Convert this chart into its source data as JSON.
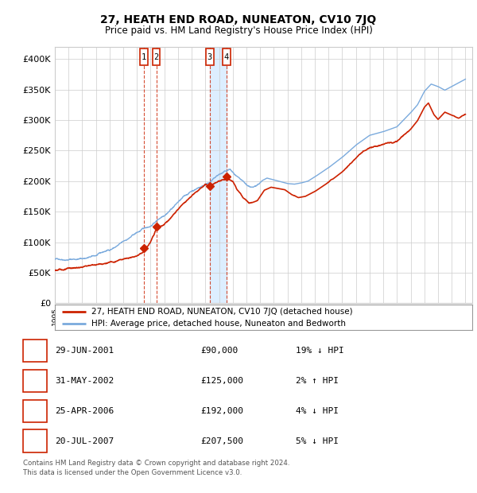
{
  "title": "27, HEATH END ROAD, NUNEATON, CV10 7JQ",
  "subtitle": "Price paid vs. HM Land Registry's House Price Index (HPI)",
  "xlim_start": 1995.0,
  "xlim_end": 2025.5,
  "ylim": [
    0,
    420000
  ],
  "yticks": [
    0,
    50000,
    100000,
    150000,
    200000,
    250000,
    300000,
    350000,
    400000
  ],
  "ytick_labels": [
    "£0",
    "£50K",
    "£100K",
    "£150K",
    "£200K",
    "£250K",
    "£300K",
    "£350K",
    "£400K"
  ],
  "transactions": [
    {
      "date": 2001.49,
      "price": 90000,
      "label": "1"
    },
    {
      "date": 2002.41,
      "price": 125000,
      "label": "2"
    },
    {
      "date": 2006.32,
      "price": 192000,
      "label": "3"
    },
    {
      "date": 2007.55,
      "price": 207500,
      "label": "4"
    }
  ],
  "table_rows": [
    {
      "num": "1",
      "date": "29-JUN-2001",
      "price": "£90,000",
      "rel": "19% ↓ HPI"
    },
    {
      "num": "2",
      "date": "31-MAY-2002",
      "price": "£125,000",
      "rel": "2% ↑ HPI"
    },
    {
      "num": "3",
      "date": "25-APR-2006",
      "price": "£192,000",
      "rel": "4% ↓ HPI"
    },
    {
      "num": "4",
      "date": "20-JUL-2007",
      "price": "£207,500",
      "rel": "5% ↓ HPI"
    }
  ],
  "legend_line1": "27, HEATH END ROAD, NUNEATON, CV10 7JQ (detached house)",
  "legend_line2": "HPI: Average price, detached house, Nuneaton and Bedworth",
  "footer": "Contains HM Land Registry data © Crown copyright and database right 2024.\nThis data is licensed under the Open Government Licence v3.0.",
  "hpi_color": "#7aaadd",
  "price_color": "#cc2200",
  "bg_color": "#ffffff",
  "grid_color": "#cccccc",
  "shaded_color": "#ddeeff",
  "hpi_keypoints": [
    [
      1995.0,
      72000
    ],
    [
      1996.0,
      74000
    ],
    [
      1997.0,
      76000
    ],
    [
      1998.0,
      80000
    ],
    [
      1999.0,
      88000
    ],
    [
      2000.0,
      100000
    ],
    [
      2001.0,
      114000
    ],
    [
      2002.0,
      125000
    ],
    [
      2003.0,
      145000
    ],
    [
      2004.0,
      168000
    ],
    [
      2005.0,
      185000
    ],
    [
      2006.0,
      197000
    ],
    [
      2007.0,
      213000
    ],
    [
      2007.8,
      220000
    ],
    [
      2008.5,
      200000
    ],
    [
      2009.0,
      188000
    ],
    [
      2009.5,
      183000
    ],
    [
      2010.0,
      192000
    ],
    [
      2010.5,
      198000
    ],
    [
      2011.0,
      195000
    ],
    [
      2011.5,
      192000
    ],
    [
      2012.0,
      189000
    ],
    [
      2012.5,
      188000
    ],
    [
      2013.0,
      190000
    ],
    [
      2013.5,
      193000
    ],
    [
      2014.0,
      200000
    ],
    [
      2015.0,
      215000
    ],
    [
      2016.0,
      232000
    ],
    [
      2017.0,
      252000
    ],
    [
      2018.0,
      268000
    ],
    [
      2019.0,
      274000
    ],
    [
      2020.0,
      282000
    ],
    [
      2021.0,
      305000
    ],
    [
      2021.5,
      318000
    ],
    [
      2022.0,
      340000
    ],
    [
      2022.5,
      352000
    ],
    [
      2023.0,
      348000
    ],
    [
      2023.5,
      342000
    ],
    [
      2024.0,
      348000
    ],
    [
      2025.0,
      360000
    ]
  ],
  "price_keypoints": [
    [
      1995.0,
      54000
    ],
    [
      1996.0,
      56000
    ],
    [
      1997.0,
      58000
    ],
    [
      1998.0,
      62000
    ],
    [
      1999.0,
      67000
    ],
    [
      2000.0,
      74000
    ],
    [
      2001.0,
      82000
    ],
    [
      2001.49,
      90000
    ],
    [
      2002.0,
      105000
    ],
    [
      2002.41,
      125000
    ],
    [
      2003.0,
      133000
    ],
    [
      2004.0,
      155000
    ],
    [
      2005.0,
      178000
    ],
    [
      2006.0,
      194000
    ],
    [
      2006.32,
      192000
    ],
    [
      2007.0,
      204000
    ],
    [
      2007.55,
      207500
    ],
    [
      2008.0,
      205000
    ],
    [
      2008.3,
      192000
    ],
    [
      2008.8,
      177000
    ],
    [
      2009.2,
      170000
    ],
    [
      2009.8,
      175000
    ],
    [
      2010.3,
      192000
    ],
    [
      2010.8,
      197000
    ],
    [
      2011.3,
      195000
    ],
    [
      2011.8,
      193000
    ],
    [
      2012.3,
      185000
    ],
    [
      2012.8,
      180000
    ],
    [
      2013.3,
      182000
    ],
    [
      2014.0,
      190000
    ],
    [
      2015.0,
      205000
    ],
    [
      2016.0,
      222000
    ],
    [
      2017.0,
      242000
    ],
    [
      2018.0,
      258000
    ],
    [
      2019.0,
      264000
    ],
    [
      2020.0,
      270000
    ],
    [
      2021.0,
      292000
    ],
    [
      2021.5,
      306000
    ],
    [
      2022.0,
      328000
    ],
    [
      2022.3,
      335000
    ],
    [
      2022.7,
      316000
    ],
    [
      2023.0,
      308000
    ],
    [
      2023.5,
      320000
    ],
    [
      2024.0,
      315000
    ],
    [
      2024.5,
      310000
    ],
    [
      2025.0,
      316000
    ]
  ]
}
